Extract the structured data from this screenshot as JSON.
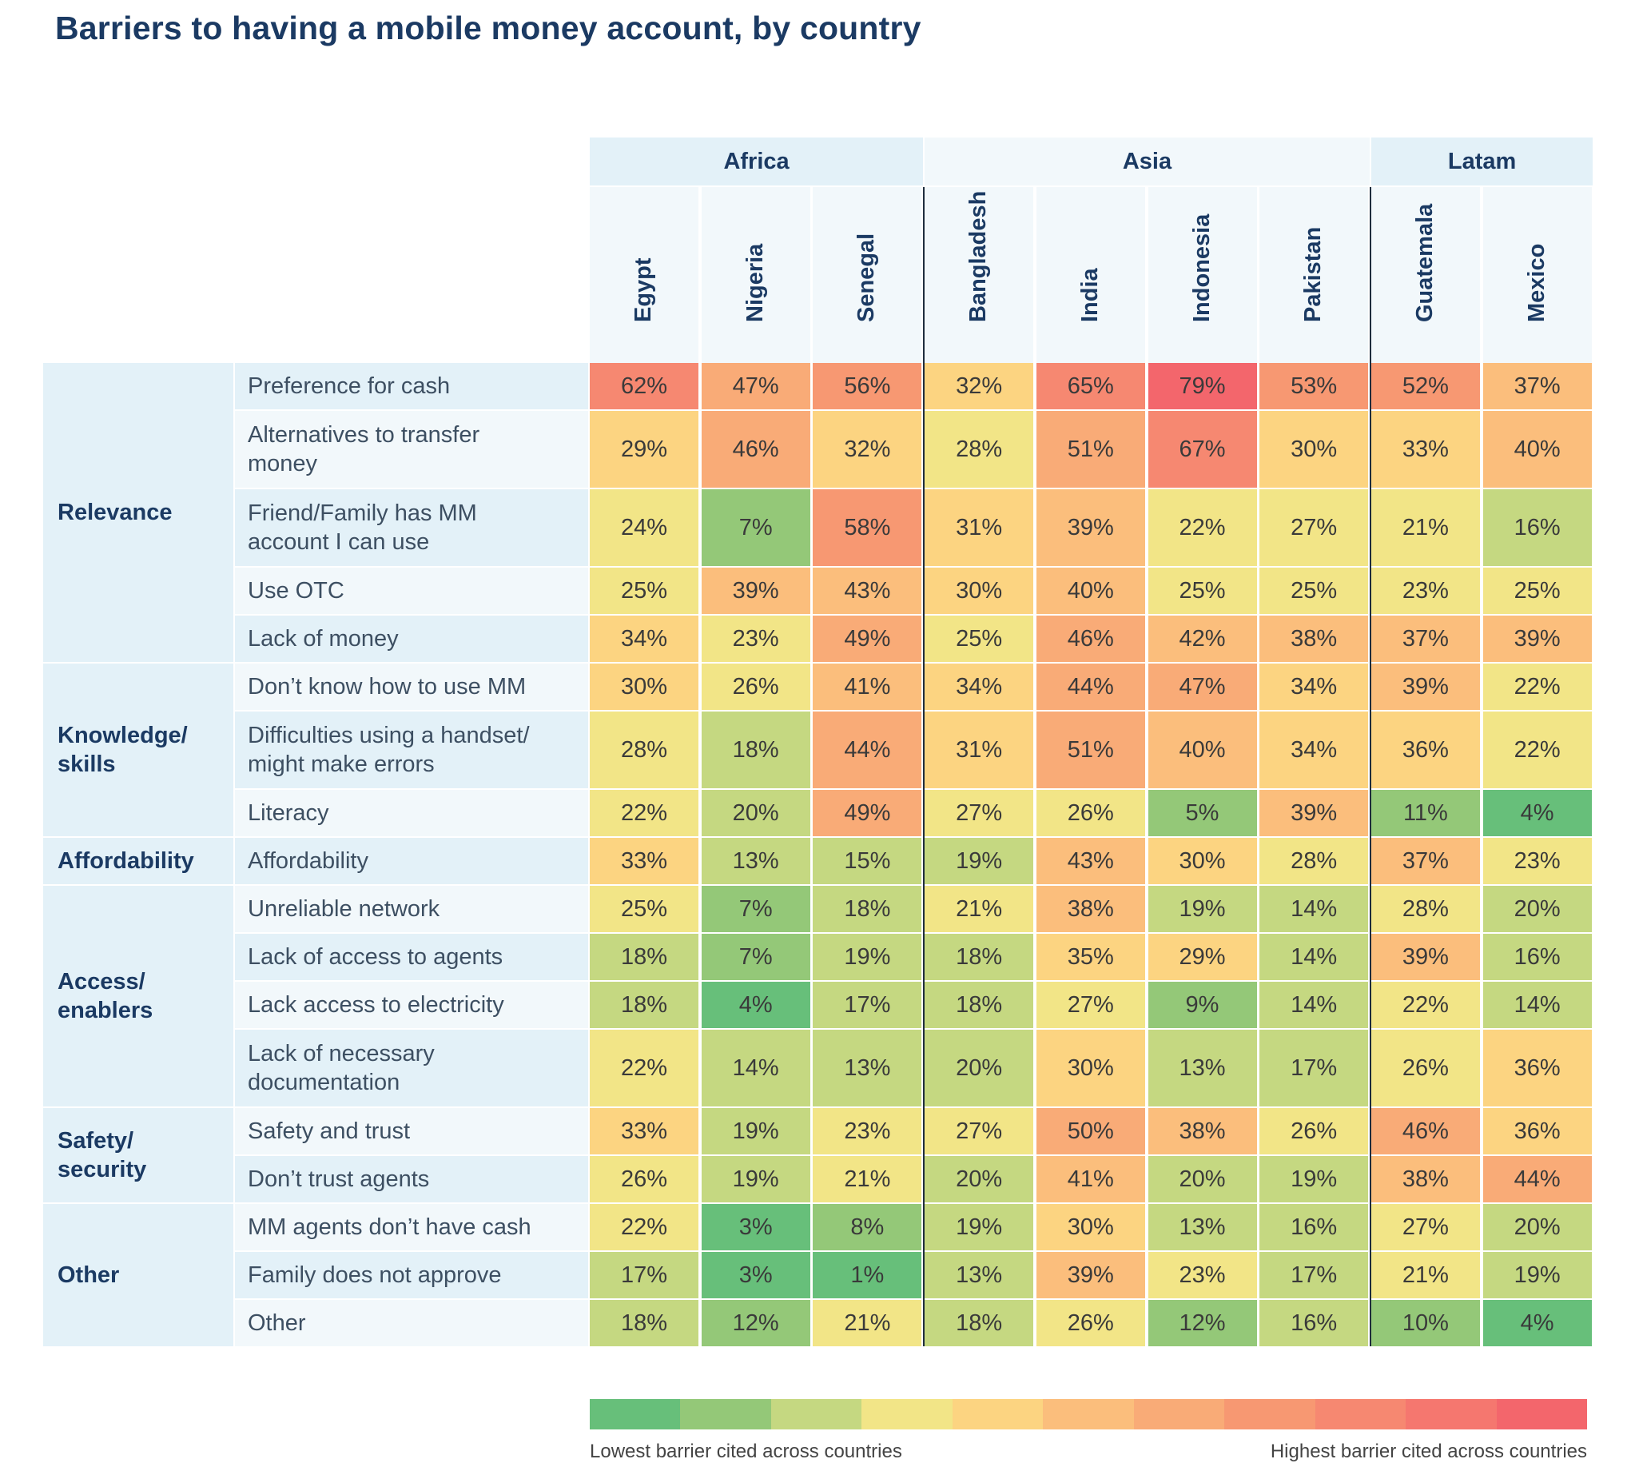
{
  "title": "Barriers to having a mobile money account, by country",
  "chart_data": {
    "type": "heatmap",
    "title": "Barriers to having a mobile money account, by country",
    "regions": [
      {
        "name": "Africa",
        "countries": [
          "Egypt",
          "Nigeria",
          "Senegal"
        ]
      },
      {
        "name": "Asia",
        "countries": [
          "Bangladesh",
          "India",
          "Indonesia",
          "Pakistan"
        ]
      },
      {
        "name": "Latam",
        "countries": [
          "Guatemala",
          "Mexico"
        ]
      }
    ],
    "countries": [
      "Egypt",
      "Nigeria",
      "Senegal",
      "Bangladesh",
      "India",
      "Indonesia",
      "Pakistan",
      "Guatemala",
      "Mexico"
    ],
    "categories": [
      {
        "name": "Relevance",
        "rows": [
          {
            "label": "Preference for cash",
            "values": [
              62,
              47,
              56,
              32,
              65,
              79,
              53,
              52,
              37
            ]
          },
          {
            "label": "Alternatives to transfer money",
            "values": [
              29,
              46,
              32,
              28,
              51,
              67,
              30,
              33,
              40
            ]
          },
          {
            "label": "Friend/Family has MM account I can use",
            "values": [
              24,
              7,
              58,
              31,
              39,
              22,
              27,
              21,
              16
            ]
          },
          {
            "label": "Use OTC",
            "values": [
              25,
              39,
              43,
              30,
              40,
              25,
              25,
              23,
              25
            ]
          },
          {
            "label": "Lack of money",
            "values": [
              34,
              23,
              49,
              25,
              46,
              42,
              38,
              37,
              39
            ]
          }
        ]
      },
      {
        "name": "Knowledge/ skills",
        "rows": [
          {
            "label": "Don’t know how to use MM",
            "values": [
              30,
              26,
              41,
              34,
              44,
              47,
              34,
              39,
              22
            ]
          },
          {
            "label": "Difficulties using a handset/ might make errors",
            "values": [
              28,
              18,
              44,
              31,
              51,
              40,
              34,
              36,
              22
            ]
          },
          {
            "label": "Literacy",
            "values": [
              22,
              20,
              49,
              27,
              26,
              5,
              39,
              11,
              4
            ]
          }
        ]
      },
      {
        "name": "Affordability",
        "rows": [
          {
            "label": "Affordability",
            "values": [
              33,
              13,
              15,
              19,
              43,
              30,
              28,
              37,
              23
            ]
          }
        ]
      },
      {
        "name": "Access/ enablers",
        "rows": [
          {
            "label": "Unreliable network",
            "values": [
              25,
              7,
              18,
              21,
              38,
              19,
              14,
              28,
              20
            ]
          },
          {
            "label": "Lack of access to agents",
            "values": [
              18,
              7,
              19,
              18,
              35,
              29,
              14,
              39,
              16
            ]
          },
          {
            "label": "Lack access to electricity",
            "values": [
              18,
              4,
              17,
              18,
              27,
              9,
              14,
              22,
              14
            ]
          },
          {
            "label": "Lack of necessary documentation",
            "values": [
              22,
              14,
              13,
              20,
              30,
              13,
              17,
              26,
              36
            ]
          }
        ]
      },
      {
        "name": "Safety/ security",
        "rows": [
          {
            "label": "Safety and trust",
            "values": [
              33,
              19,
              23,
              27,
              50,
              38,
              26,
              46,
              36
            ]
          },
          {
            "label": "Don’t trust agents",
            "values": [
              26,
              19,
              21,
              20,
              41,
              20,
              19,
              38,
              44
            ]
          }
        ]
      },
      {
        "name": "Other",
        "rows": [
          {
            "label": "MM agents don’t have cash",
            "values": [
              22,
              3,
              8,
              19,
              30,
              13,
              16,
              27,
              20
            ]
          },
          {
            "label": "Family does not approve",
            "values": [
              17,
              3,
              1,
              13,
              39,
              23,
              17,
              21,
              19
            ]
          },
          {
            "label": "Other",
            "values": [
              18,
              12,
              21,
              18,
              26,
              12,
              16,
              10,
              4
            ]
          }
        ]
      }
    ],
    "value_suffix": "%",
    "color_scale": [
      "#67bf7a",
      "#94c878",
      "#c5d881",
      "#f2e587",
      "#fcd481",
      "#fbbe7c",
      "#f9ab77",
      "#f79872",
      "#f68871",
      "#f5776f",
      "#f3666c"
    ],
    "legend": {
      "low_label": "Lowest barrier cited across countries",
      "high_label": "Highest barrier cited across countries"
    }
  }
}
